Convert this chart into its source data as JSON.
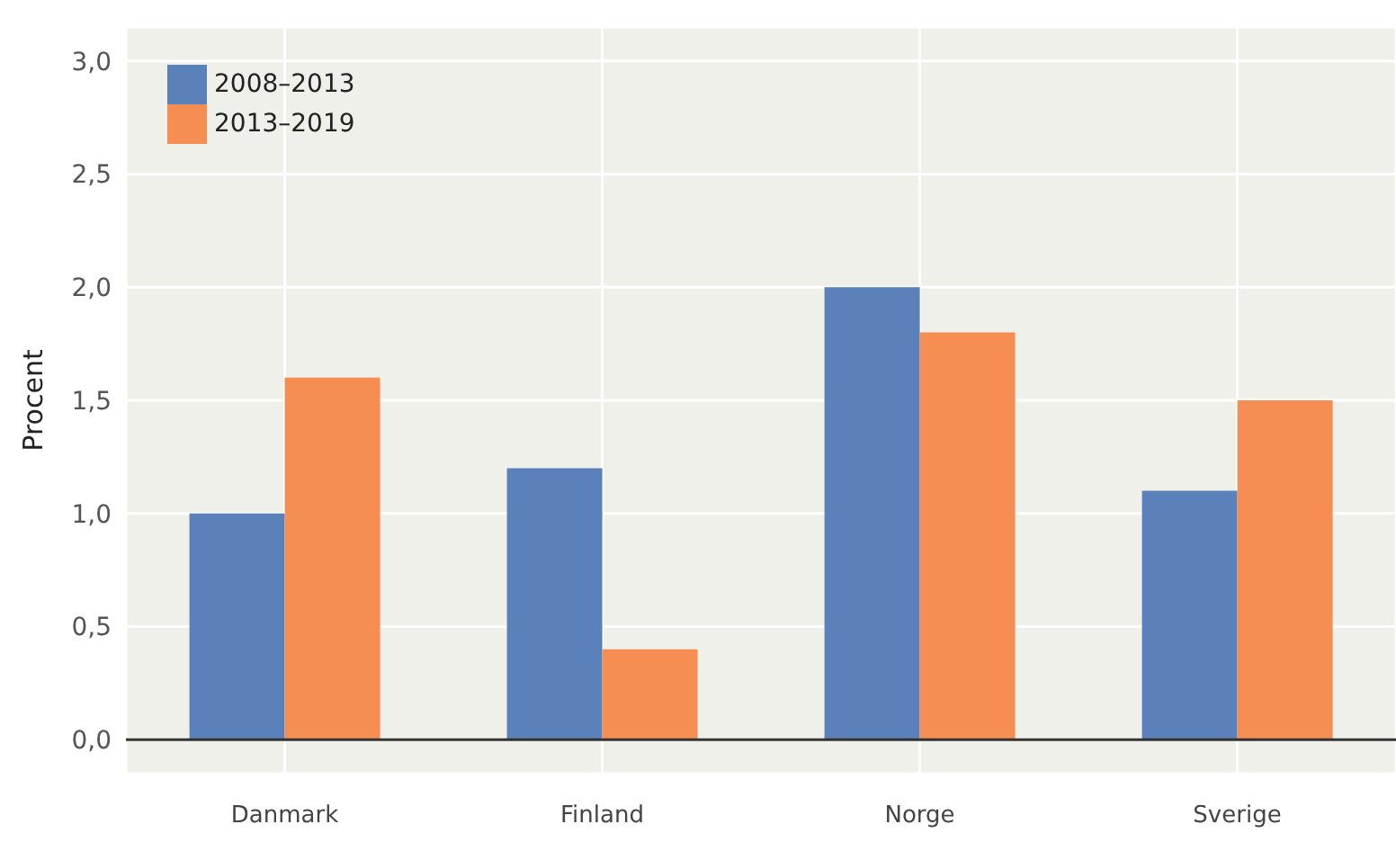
{
  "chart_data": {
    "type": "bar",
    "ylabel": "Procent",
    "categories": [
      "Danmark",
      "Finland",
      "Norge",
      "Sverige"
    ],
    "series": [
      {
        "name": "2008–2013",
        "color": "#5a81b9",
        "values": [
          1.0,
          1.2,
          2.0,
          1.1
        ]
      },
      {
        "name": "2013–2019",
        "color": "#f68d52",
        "values": [
          1.6,
          0.4,
          1.8,
          1.5
        ]
      }
    ],
    "ylim": [
      -0.15,
      3.15
    ],
    "yticks": [
      {
        "value": 0,
        "label": "0,0"
      },
      {
        "value": 0.5,
        "label": "0,5"
      },
      {
        "value": 1,
        "label": "1,0"
      },
      {
        "value": 1.5,
        "label": "1,5"
      },
      {
        "value": 2,
        "label": "2,0"
      },
      {
        "value": 2.5,
        "label": "2,5"
      },
      {
        "value": 3,
        "label": "3,0"
      }
    ],
    "ref_lines": [
      {
        "axis": "y",
        "value": 0,
        "label": null,
        "color": "#333333"
      }
    ],
    "grid": true,
    "legend": "top left"
  }
}
